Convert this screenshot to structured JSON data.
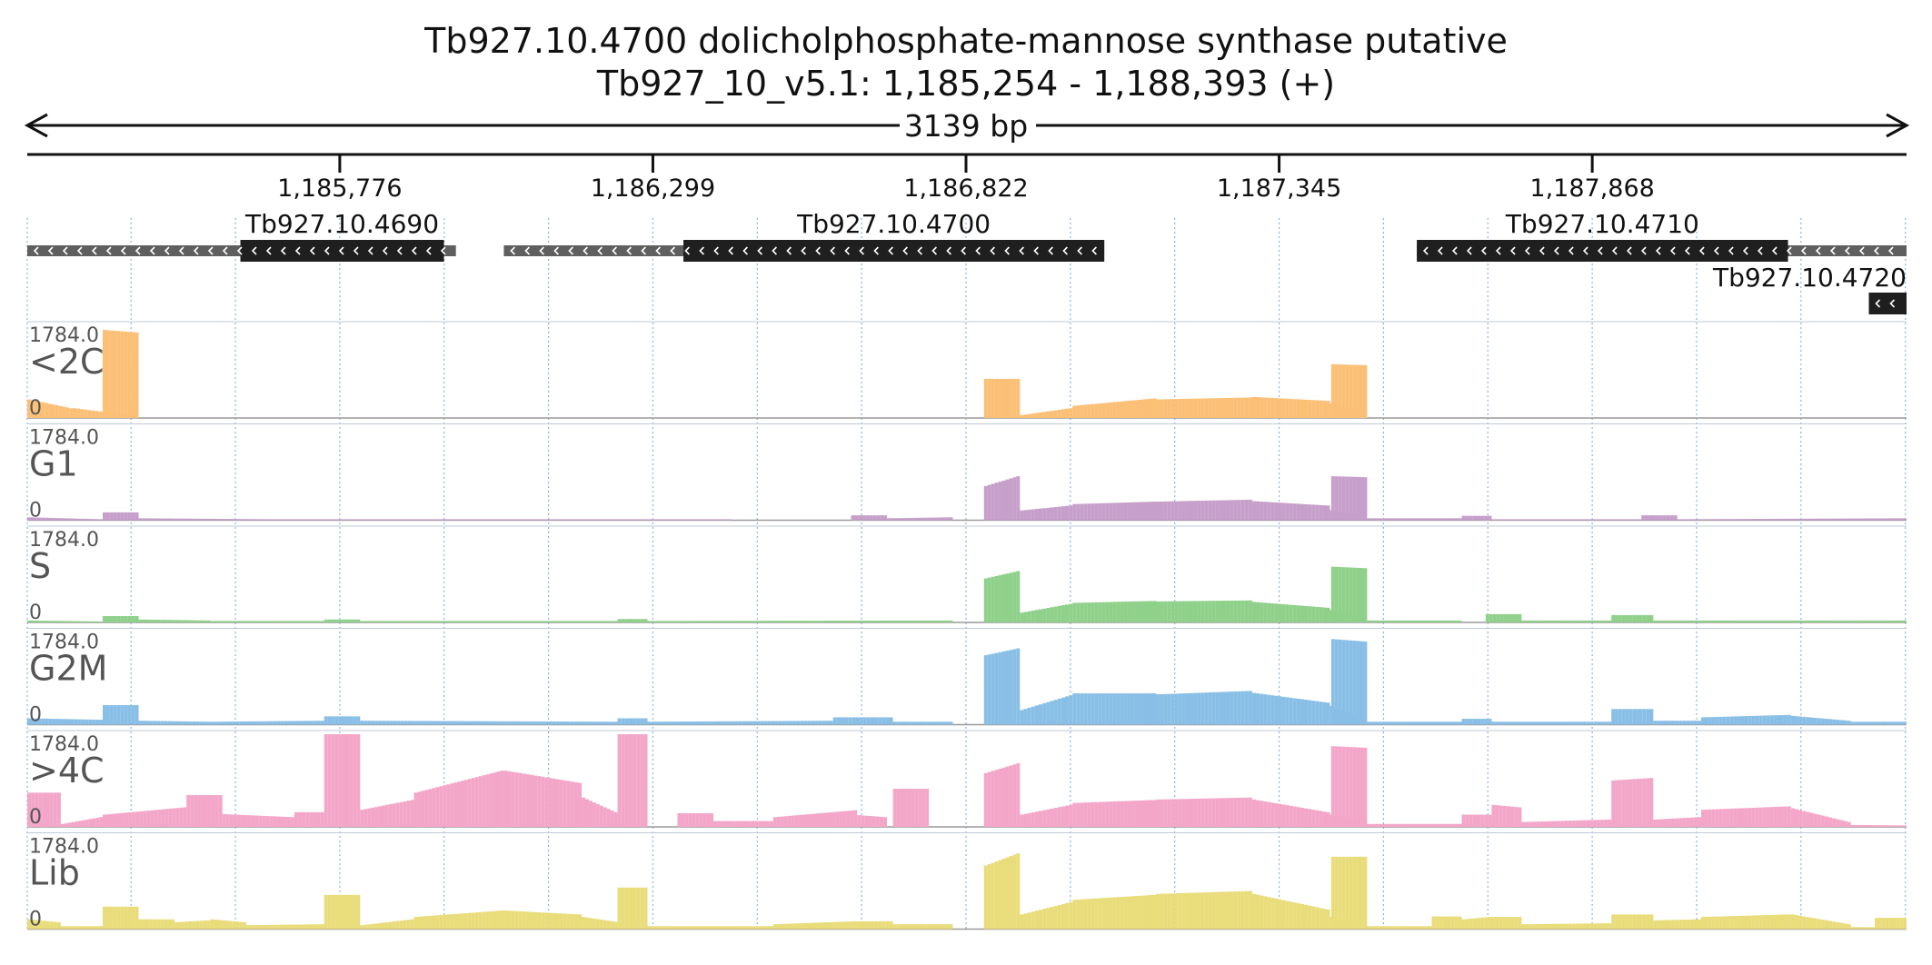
{
  "header": {
    "title": "Tb927.10.4700  dolicholphosphate-mannose synthase  putative",
    "locus": "Tb927_10_v5.1: 1,185,254 - 1,188,393 (+)",
    "span_label": "3139 bp"
  },
  "chart_data": {
    "type": "bar",
    "region": {
      "start": 1185254,
      "end": 1188393
    },
    "x_ticks": [
      {
        "pos": 1185776,
        "label": "1,185,776"
      },
      {
        "pos": 1186299,
        "label": "1,186,299"
      },
      {
        "pos": 1186822,
        "label": "1,186,822"
      },
      {
        "pos": 1187345,
        "label": "1,187,345"
      },
      {
        "pos": 1187868,
        "label": "1,187,868"
      }
    ],
    "grid": true,
    "genes": [
      {
        "name": "Tb927.10.4690",
        "start": 1185254,
        "end": 1185970,
        "cds_start": 1185610,
        "cds_end": 1185950
      },
      {
        "name": "Tb927.10.4700",
        "start": 1186050,
        "end": 1187040,
        "cds_start": 1186350,
        "cds_end": 1187053
      },
      {
        "name": "Tb927.10.4710",
        "start": 1187575,
        "end": 1188393,
        "cds_start": 1187575,
        "cds_end": 1188195
      },
      {
        "name": "Tb927.10.4720",
        "start": 1188330,
        "end": 1188393,
        "cds_start": 1188330,
        "cds_end": 1188393
      }
    ],
    "track_max_label": "1784.0",
    "track_min_label": "0",
    "y_range": [
      0,
      1784
    ],
    "tracks": [
      {
        "name": "<2C",
        "color": "#fbbf76",
        "segments": [
          [
            1185254,
            1185330,
            380,
            200
          ],
          [
            1185330,
            1185440,
            200,
            40
          ],
          [
            1185440,
            1185440,
            0,
            0
          ],
          [
            1185380,
            1185440,
            1800,
            1750
          ],
          [
            1186852,
            1186912,
            800,
            800
          ],
          [
            1186912,
            1187000,
            60,
            200
          ],
          [
            1187000,
            1187140,
            250,
            400
          ],
          [
            1187140,
            1187300,
            380,
            420
          ],
          [
            1187300,
            1187430,
            430,
            350
          ],
          [
            1187430,
            1187490,
            300,
            100
          ],
          [
            1187432,
            1187492,
            1100,
            1080
          ]
        ]
      },
      {
        "name": "G1",
        "color": "#c69fca",
        "segments": [
          [
            1185254,
            1185380,
            60,
            20
          ],
          [
            1185380,
            1185440,
            160,
            160
          ],
          [
            1185440,
            1185660,
            40,
            20
          ],
          [
            1185660,
            1186080,
            20,
            20
          ],
          [
            1186080,
            1186150,
            20,
            20
          ],
          [
            1186150,
            1186430,
            20,
            20
          ],
          [
            1186630,
            1186690,
            100,
            100
          ],
          [
            1186690,
            1186800,
            40,
            60
          ],
          [
            1186852,
            1186912,
            700,
            900
          ],
          [
            1186912,
            1187000,
            200,
            300
          ],
          [
            1187000,
            1187140,
            330,
            380
          ],
          [
            1187140,
            1187300,
            380,
            420
          ],
          [
            1187300,
            1187430,
            390,
            300
          ],
          [
            1187430,
            1187490,
            200,
            100
          ],
          [
            1187432,
            1187492,
            900,
            880
          ],
          [
            1187492,
            1187650,
            40,
            40
          ],
          [
            1187650,
            1187700,
            90,
            90
          ],
          [
            1187700,
            1187950,
            20,
            20
          ],
          [
            1187950,
            1188010,
            100,
            100
          ],
          [
            1188010,
            1188393,
            20,
            40
          ]
        ]
      },
      {
        "name": "S",
        "color": "#8fd08a",
        "segments": [
          [
            1185254,
            1185380,
            40,
            20
          ],
          [
            1185380,
            1185440,
            130,
            130
          ],
          [
            1185440,
            1185560,
            60,
            40
          ],
          [
            1185560,
            1185750,
            30,
            30
          ],
          [
            1185750,
            1185810,
            60,
            60
          ],
          [
            1185810,
            1186240,
            30,
            30
          ],
          [
            1186240,
            1186290,
            70,
            70
          ],
          [
            1186290,
            1186800,
            30,
            40
          ],
          [
            1186852,
            1186912,
            900,
            1050
          ],
          [
            1186912,
            1187000,
            200,
            380
          ],
          [
            1187000,
            1187140,
            400,
            440
          ],
          [
            1187140,
            1187300,
            430,
            450
          ],
          [
            1187300,
            1187430,
            420,
            300
          ],
          [
            1187430,
            1187490,
            250,
            100
          ],
          [
            1187432,
            1187492,
            1140,
            1110
          ],
          [
            1187492,
            1187650,
            40,
            40
          ],
          [
            1187690,
            1187750,
            170,
            170
          ],
          [
            1187750,
            1187900,
            40,
            40
          ],
          [
            1187900,
            1187970,
            150,
            150
          ],
          [
            1187970,
            1188393,
            40,
            40
          ]
        ]
      },
      {
        "name": "G2M",
        "color": "#89bfe6",
        "segments": [
          [
            1185254,
            1185380,
            130,
            100
          ],
          [
            1185380,
            1185440,
            400,
            400
          ],
          [
            1185440,
            1185560,
            80,
            60
          ],
          [
            1185560,
            1185750,
            60,
            80
          ],
          [
            1185750,
            1185810,
            170,
            170
          ],
          [
            1185810,
            1186240,
            80,
            60
          ],
          [
            1186240,
            1186290,
            130,
            130
          ],
          [
            1186290,
            1186600,
            60,
            80
          ],
          [
            1186600,
            1186700,
            150,
            150
          ],
          [
            1186700,
            1186800,
            60,
            60
          ],
          [
            1186852,
            1186912,
            1420,
            1560
          ],
          [
            1186912,
            1187000,
            300,
            600
          ],
          [
            1187000,
            1187140,
            640,
            640
          ],
          [
            1187140,
            1187300,
            620,
            690
          ],
          [
            1187300,
            1187430,
            650,
            450
          ],
          [
            1187430,
            1187490,
            380,
            100
          ],
          [
            1187432,
            1187492,
            1750,
            1700
          ],
          [
            1187492,
            1187650,
            60,
            60
          ],
          [
            1187650,
            1187700,
            120,
            120
          ],
          [
            1187700,
            1187900,
            60,
            60
          ],
          [
            1187900,
            1187970,
            320,
            320
          ],
          [
            1187970,
            1188050,
            80,
            80
          ],
          [
            1188050,
            1188200,
            150,
            200
          ],
          [
            1188200,
            1188300,
            180,
            80
          ],
          [
            1188300,
            1188393,
            60,
            60
          ]
        ]
      },
      {
        "name": ">4C",
        "color": "#f3a6c8",
        "segments": [
          [
            1185254,
            1185310,
            700,
            700
          ],
          [
            1185310,
            1185380,
            60,
            200
          ],
          [
            1185380,
            1185520,
            250,
            400
          ],
          [
            1185520,
            1185580,
            650,
            650
          ],
          [
            1185580,
            1185700,
            260,
            200
          ],
          [
            1185700,
            1185750,
            300,
            300
          ],
          [
            1185750,
            1185810,
            2000,
            1980
          ],
          [
            1185810,
            1185900,
            350,
            550
          ],
          [
            1185900,
            1186050,
            700,
            1150
          ],
          [
            1186050,
            1186180,
            1150,
            900
          ],
          [
            1186180,
            1186240,
            600,
            300
          ],
          [
            1186240,
            1186290,
            2150,
            2050
          ],
          [
            1186340,
            1186400,
            280,
            280
          ],
          [
            1186400,
            1186500,
            120,
            120
          ],
          [
            1186500,
            1186640,
            200,
            340
          ],
          [
            1186640,
            1186690,
            240,
            200
          ],
          [
            1186700,
            1186760,
            780,
            780
          ],
          [
            1186852,
            1186912,
            1100,
            1300
          ],
          [
            1186912,
            1187000,
            250,
            450
          ],
          [
            1187000,
            1187140,
            490,
            550
          ],
          [
            1187140,
            1187300,
            560,
            600
          ],
          [
            1187300,
            1187430,
            560,
            300
          ],
          [
            1187430,
            1187490,
            250,
            100
          ],
          [
            1187432,
            1187492,
            1650,
            1620
          ],
          [
            1187492,
            1187650,
            60,
            60
          ],
          [
            1187650,
            1187700,
            250,
            250
          ],
          [
            1187700,
            1187750,
            450,
            400
          ],
          [
            1187750,
            1187900,
            100,
            150
          ],
          [
            1187900,
            1187970,
            950,
            1000
          ],
          [
            1187970,
            1188050,
            150,
            200
          ],
          [
            1188050,
            1188200,
            350,
            420
          ],
          [
            1188200,
            1188300,
            380,
            100
          ],
          [
            1188300,
            1188393,
            40,
            30
          ]
        ]
      },
      {
        "name": "Lib",
        "color": "#e9dc7a",
        "segments": [
          [
            1185254,
            1185310,
            200,
            140
          ],
          [
            1185310,
            1185380,
            60,
            60
          ],
          [
            1185380,
            1185440,
            460,
            460
          ],
          [
            1185440,
            1185500,
            200,
            200
          ],
          [
            1185500,
            1185560,
            140,
            180
          ],
          [
            1185560,
            1185620,
            200,
            140
          ],
          [
            1185620,
            1185750,
            80,
            100
          ],
          [
            1185750,
            1185810,
            700,
            700
          ],
          [
            1185810,
            1185900,
            80,
            200
          ],
          [
            1185900,
            1186050,
            250,
            380
          ],
          [
            1186050,
            1186180,
            380,
            300
          ],
          [
            1186180,
            1186240,
            250,
            150
          ],
          [
            1186240,
            1186290,
            850,
            850
          ],
          [
            1186290,
            1186500,
            60,
            60
          ],
          [
            1186500,
            1186640,
            100,
            160
          ],
          [
            1186640,
            1186700,
            160,
            160
          ],
          [
            1186700,
            1186800,
            100,
            100
          ],
          [
            1186852,
            1186912,
            1300,
            1550
          ],
          [
            1186912,
            1187000,
            300,
            550
          ],
          [
            1187000,
            1187140,
            600,
            700
          ],
          [
            1187140,
            1187300,
            720,
            780
          ],
          [
            1187300,
            1187430,
            720,
            400
          ],
          [
            1187430,
            1187490,
            250,
            100
          ],
          [
            1187432,
            1187492,
            1480,
            1480
          ],
          [
            1187492,
            1187600,
            60,
            60
          ],
          [
            1187600,
            1187650,
            260,
            260
          ],
          [
            1187650,
            1187700,
            200,
            250
          ],
          [
            1187700,
            1187750,
            250,
            250
          ],
          [
            1187750,
            1187900,
            100,
            120
          ],
          [
            1187900,
            1187970,
            300,
            300
          ],
          [
            1187970,
            1188050,
            180,
            200
          ],
          [
            1188050,
            1188200,
            250,
            300
          ],
          [
            1188200,
            1188300,
            300,
            100
          ],
          [
            1188300,
            1188340,
            40,
            40
          ],
          [
            1188340,
            1188393,
            230,
            230
          ]
        ]
      }
    ]
  }
}
